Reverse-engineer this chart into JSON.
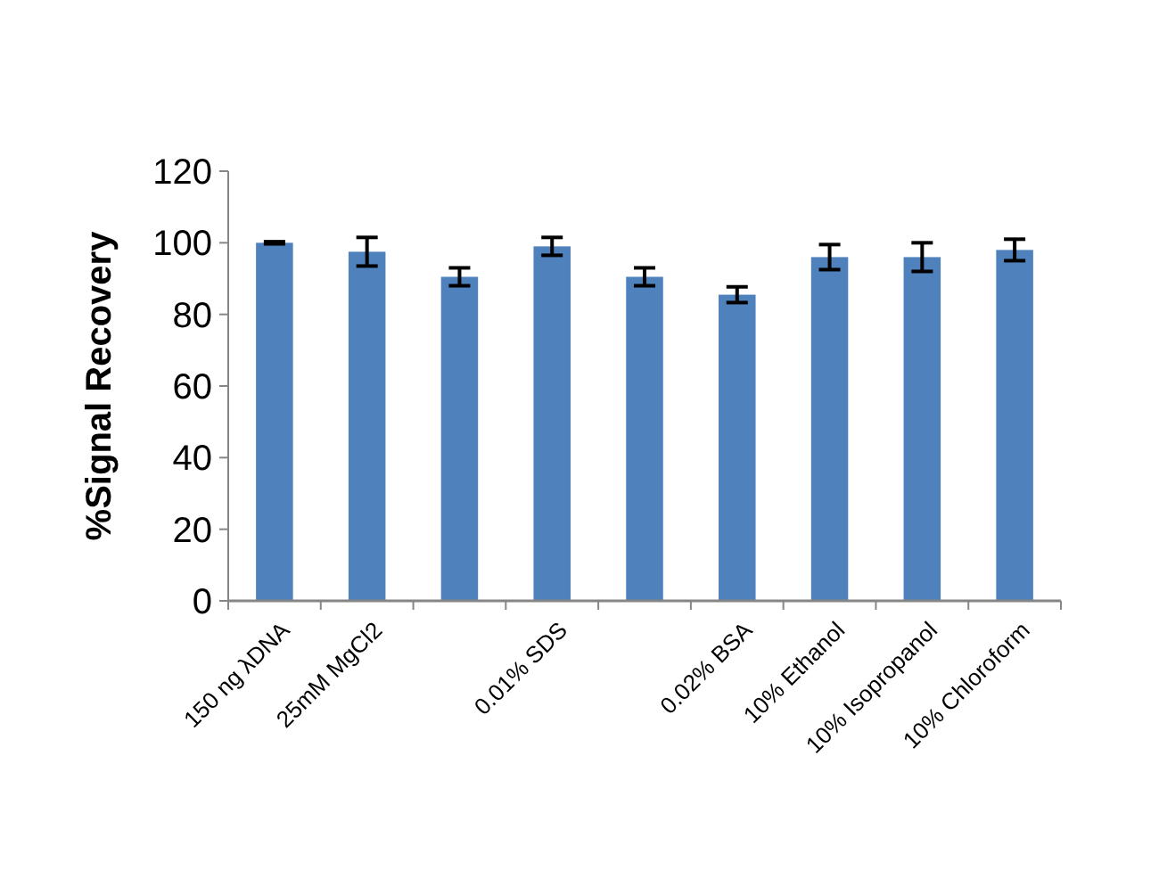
{
  "chart_data": {
    "type": "bar",
    "ylabel": "%Signal Recovery",
    "categories": [
      "150 ng λDNA",
      "25mM MgCl2",
      null,
      "0.01% SDS",
      null,
      "0.02% BSA",
      "10% Ethanol",
      "10% Isopropanol",
      "10% Chloroform"
    ],
    "values": [
      100,
      97.5,
      90.5,
      99,
      90.5,
      85.5,
      96,
      96,
      98
    ],
    "errors": [
      0.3,
      4,
      2.5,
      2.5,
      2.5,
      2.2,
      3.5,
      4,
      3
    ],
    "color": "#4f81bd",
    "ylim": [
      0,
      120
    ],
    "yticks": [
      0,
      20,
      40,
      60,
      80,
      100,
      120
    ],
    "grid": false
  }
}
